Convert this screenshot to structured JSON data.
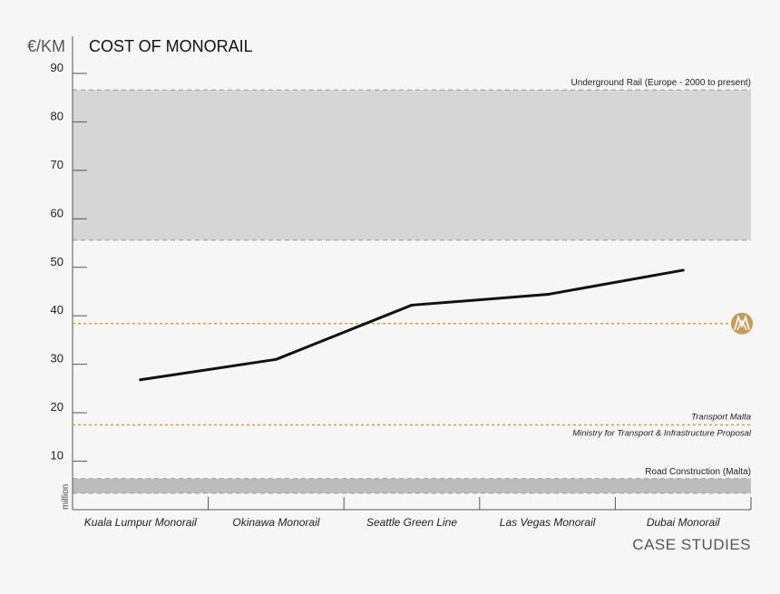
{
  "chart_data": {
    "type": "line",
    "title": "COST OF MONORAIL",
    "ylabel": "€/KM",
    "yunit": "million",
    "xlabel": "CASE STUDIES",
    "categories": [
      "Kuala Lumpur Monorail",
      "Okinawa Monorail",
      "Seattle Green Line",
      "Las Vegas Monorail",
      "Dubai Monorail"
    ],
    "series": [
      {
        "values": [
          26.8,
          31.0,
          42.2,
          44.4,
          49.4
        ]
      }
    ],
    "yticks": [
      10,
      20,
      30,
      40,
      50,
      60,
      70,
      80,
      90
    ],
    "ylim": [
      0,
      95
    ],
    "bands": [
      {
        "label": "Underground Rail (Europe - 2000 to present)",
        "from": 55.6,
        "to": 86.6,
        "color": "#d6d6d6"
      },
      {
        "label": "Road Construction (Malta)",
        "from": 3.4,
        "to": 6.4,
        "color": "#bcbcbc"
      }
    ],
    "reference_lines": [
      {
        "label": "",
        "value": 38.4,
        "color": "#c8a060",
        "has_logo": true
      },
      {
        "label": "Transport Malta",
        "sublabel": "Ministry for Transport & Infrastructure Proposal",
        "value": 17.5,
        "color": "#c8a060"
      }
    ],
    "grid": false,
    "legend": "none",
    "colors": {
      "line": "#111111",
      "axis": "#555555",
      "logo": "#c99a55"
    }
  }
}
